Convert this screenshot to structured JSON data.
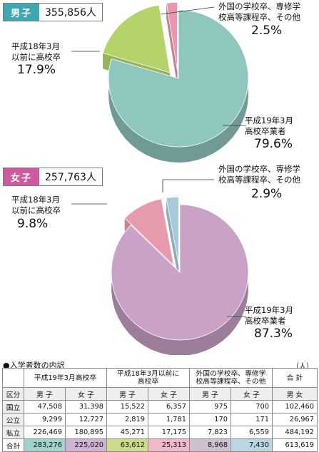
{
  "chart_data": [
    {
      "type": "pie",
      "group": "男子",
      "total": "355,856人",
      "slices": [
        {
          "label": "平成19年3月\n高校卒業者",
          "value": 79.6,
          "pct": "79.6%",
          "color": "#8fc7bf"
        },
        {
          "label": "平成18年3月\n以前に高校卒",
          "value": 17.9,
          "pct": "17.9%",
          "color": "#b4d36a"
        },
        {
          "label": "外国の学校卒、専修学\n校高等課程卒、その他",
          "value": 2.5,
          "pct": "2.5%",
          "color": "#e798b0"
        }
      ],
      "tag_color": "#3fa7b0"
    },
    {
      "type": "pie",
      "group": "女子",
      "total": "257,763人",
      "slices": [
        {
          "label": "平成19年3月\n高校卒業者",
          "value": 87.3,
          "pct": "87.3%",
          "color": "#c9a2c6"
        },
        {
          "label": "平成18年3月\n以前に高校卒",
          "value": 9.8,
          "pct": "9.8%",
          "color": "#e89aad"
        },
        {
          "label": "外国の学校卒、専修学\n校高等課程卒、その他",
          "value": 2.9,
          "pct": "2.9%",
          "color": "#a7c9d9"
        }
      ],
      "tag_color": "#d05aa0"
    }
  ],
  "table": {
    "title": "●入学者数の内訳",
    "unit": "（人）",
    "group_headers": [
      "平成19年3月高校卒",
      "平成18年3月以前に\n高校卒",
      "外国の学校卒、専修学\n校高等課程卒、その他",
      "合 計"
    ],
    "sub_headers": [
      "区分",
      "男 子",
      "女 子",
      "男 子",
      "女 子",
      "男 子",
      "女 子",
      "男 女"
    ],
    "rows": [
      {
        "name": "国立",
        "values": [
          "47,508",
          "31,398",
          "15,522",
          "6,357",
          "975",
          "700",
          "102,460"
        ]
      },
      {
        "name": "公立",
        "values": [
          "9,299",
          "12,727",
          "2,819",
          "1,781",
          "170",
          "171",
          "26,967"
        ]
      },
      {
        "name": "私立",
        "values": [
          "226,469",
          "180,895",
          "45,271",
          "17,175",
          "7,823",
          "6,559",
          "484,192"
        ]
      },
      {
        "name": "合計",
        "values": [
          "283,276",
          "225,020",
          "63,612",
          "25,313",
          "8,968",
          "7,430",
          "613,619"
        ]
      }
    ],
    "total_colors": [
      "#9fd3cc",
      "#cdb3d4",
      "#c9dd8a",
      "#f0b9c9",
      "#cfc0cf",
      "#b9d6e2",
      "#ffffff"
    ]
  }
}
